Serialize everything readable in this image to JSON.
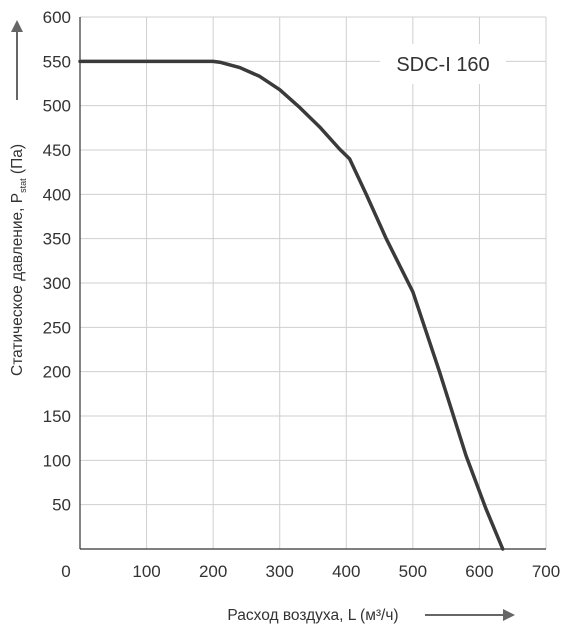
{
  "chart_data": {
    "type": "line",
    "title": "",
    "xlabel": "Расход воздуха, L (м³/ч)",
    "ylabel": {
      "prefix": "Статическое давление, P",
      "subscript": "stat",
      "suffix": " (Па)"
    },
    "annotation": "SDC-I 160",
    "xlim": [
      0,
      700
    ],
    "ylim": [
      0,
      600
    ],
    "x_ticks": [
      0,
      100,
      200,
      300,
      400,
      500,
      600,
      700
    ],
    "y_ticks": [
      50,
      100,
      150,
      200,
      250,
      300,
      350,
      400,
      450,
      500,
      550,
      600
    ],
    "grid": true,
    "series": [
      {
        "x": [
          0,
          100,
          200,
          210,
          240,
          270,
          300,
          330,
          360,
          390,
          405,
          430,
          460,
          500,
          540,
          580,
          610,
          635
        ],
        "y": [
          550,
          550,
          550,
          549,
          543,
          533,
          518,
          498,
          476,
          451,
          440,
          400,
          350,
          290,
          200,
          105,
          45,
          0
        ]
      }
    ],
    "colors": {
      "line": "#3a3a3a",
      "grid": "#cfcfcf",
      "axis": "#333333",
      "text": "#333333"
    }
  }
}
